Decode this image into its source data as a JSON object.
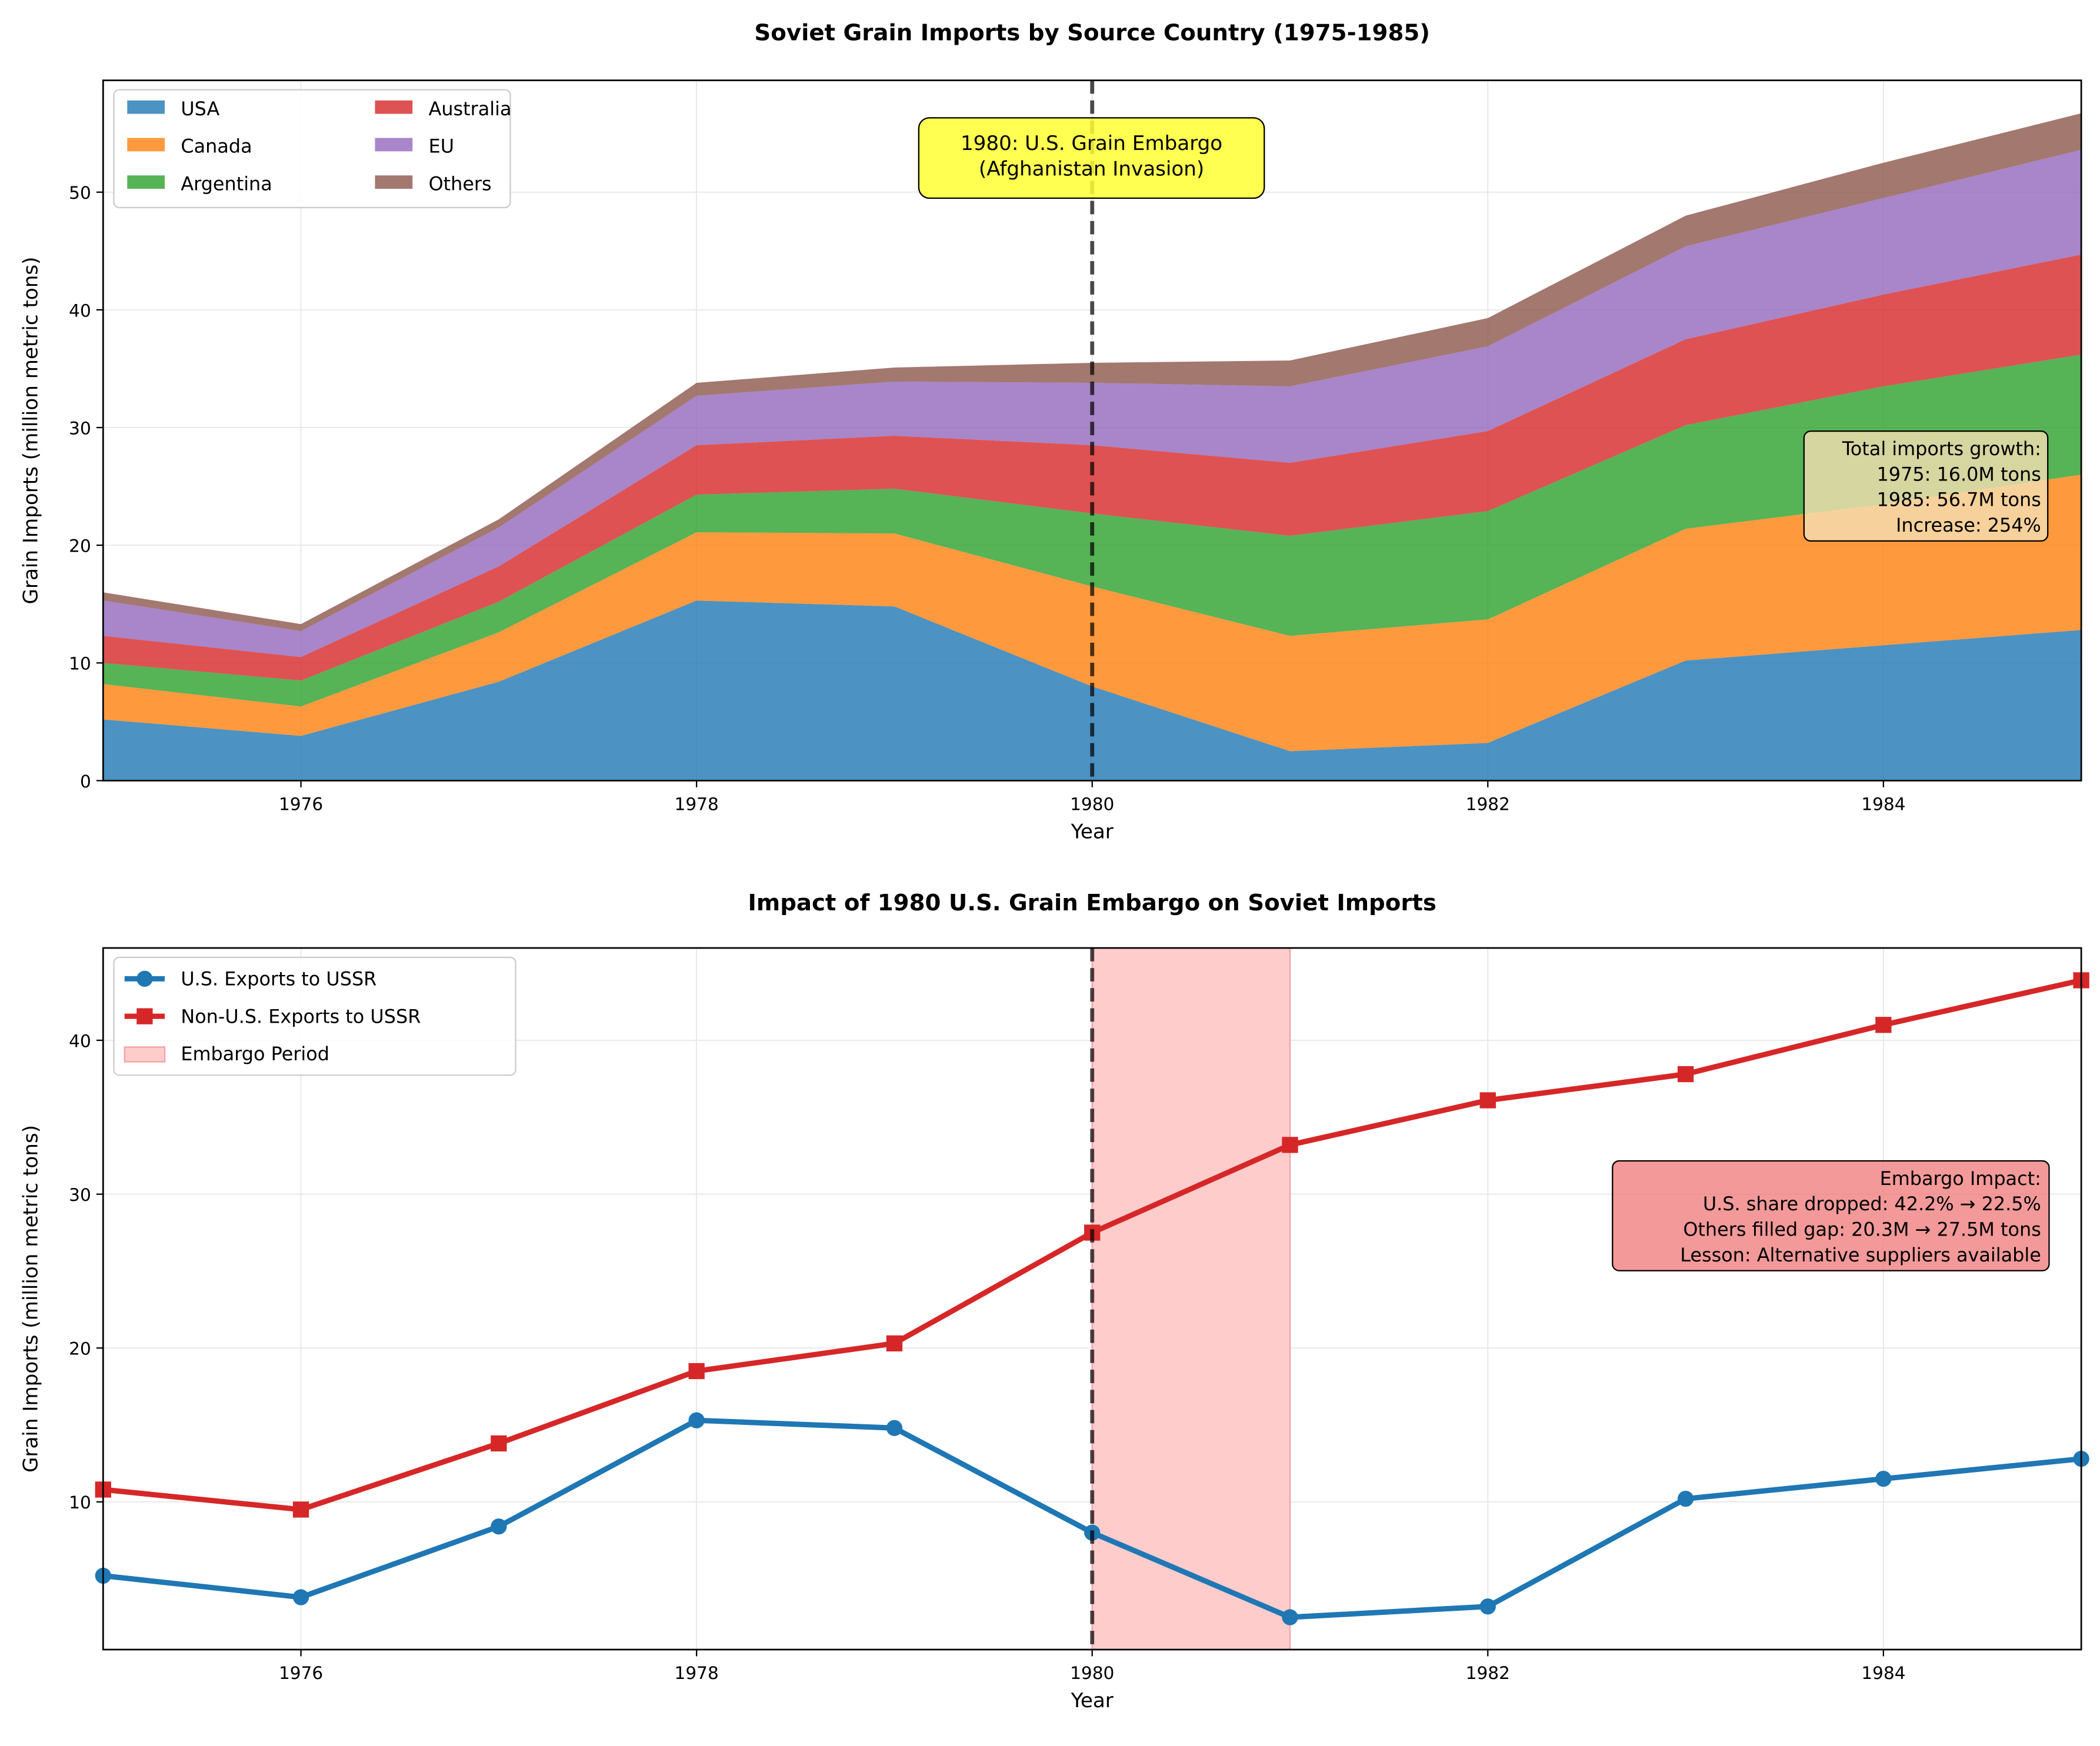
{
  "chart_data": [
    {
      "type": "area",
      "stacked": true,
      "title": "Soviet Grain Imports by Source Country (1975-1985)",
      "xlabel": "Year",
      "ylabel": "Grain Imports (million metric tons)",
      "x": [
        1975,
        1976,
        1977,
        1978,
        1979,
        1980,
        1981,
        1982,
        1983,
        1984,
        1985
      ],
      "xlim": [
        1975,
        1985
      ],
      "ylim": [
        0,
        59.5
      ],
      "xticks": [
        1976,
        1978,
        1980,
        1982,
        1984
      ],
      "yticks": [
        0,
        10,
        20,
        30,
        40,
        50
      ],
      "grid": true,
      "legend": "top-left",
      "series": [
        {
          "name": "USA",
          "color": "#1f77b4",
          "values": [
            5.2,
            3.8,
            8.4,
            15.3,
            14.8,
            8.0,
            2.5,
            3.2,
            10.2,
            11.5,
            12.8
          ]
        },
        {
          "name": "Canada",
          "color": "#ff7f0e",
          "values": [
            3.0,
            2.5,
            4.2,
            5.8,
            6.2,
            8.5,
            9.8,
            10.5,
            11.2,
            12.0,
            13.2
          ]
        },
        {
          "name": "Argentina",
          "color": "#2ca02c",
          "values": [
            1.8,
            2.2,
            2.6,
            3.2,
            3.8,
            6.2,
            8.5,
            9.2,
            8.8,
            10.0,
            10.2
          ]
        },
        {
          "name": "Australia",
          "color": "#d62728",
          "values": [
            2.3,
            2.0,
            3.0,
            4.2,
            4.5,
            5.8,
            6.2,
            6.8,
            7.3,
            7.8,
            8.5
          ]
        },
        {
          "name": "EU",
          "color": "#9467bd",
          "values": [
            3.0,
            2.2,
            3.3,
            4.2,
            4.6,
            5.3,
            6.5,
            7.2,
            7.9,
            8.2,
            8.9
          ]
        },
        {
          "name": "Others",
          "color": "#8c564b",
          "values": [
            0.7,
            0.6,
            0.7,
            1.1,
            1.2,
            1.7,
            2.2,
            2.4,
            2.6,
            3.0,
            3.1
          ]
        }
      ],
      "vline": 1980,
      "annotations": {
        "embargo": [
          "1980: U.S. Grain Embargo",
          "(Afghanistan Invasion)"
        ],
        "growth": [
          "Total imports growth:",
          "1975: 16.0M tons",
          "1985: 56.7M tons",
          "Increase: 254%"
        ]
      }
    },
    {
      "type": "line",
      "title": "Impact of 1980 U.S. Grain Embargo on Soviet Imports",
      "xlabel": "Year",
      "ylabel": "Grain Imports (million metric tons)",
      "x": [
        1975,
        1976,
        1977,
        1978,
        1979,
        1980,
        1981,
        1982,
        1983,
        1984,
        1985
      ],
      "xlim": [
        1975,
        1985
      ],
      "ylim": [
        0.4,
        46
      ],
      "xticks": [
        1976,
        1978,
        1980,
        1982,
        1984
      ],
      "yticks": [
        10,
        20,
        30,
        40
      ],
      "grid": true,
      "legend": "top-left",
      "series": [
        {
          "name": "U.S. Exports to USSR",
          "color": "#1f77b4",
          "marker": "circle",
          "values": [
            5.2,
            3.8,
            8.4,
            15.3,
            14.8,
            8.0,
            2.5,
            3.2,
            10.2,
            11.5,
            12.8
          ]
        },
        {
          "name": "Non-U.S. Exports to USSR",
          "color": "#d62728",
          "marker": "square",
          "values": [
            10.8,
            9.5,
            13.8,
            18.5,
            20.3,
            27.5,
            33.2,
            36.1,
            37.8,
            41.0,
            43.9
          ]
        }
      ],
      "span": {
        "name": "Embargo Period",
        "from": 1980,
        "to": 1981,
        "color": "#ffcccc"
      },
      "vline": 1980,
      "annotations": {
        "impact": [
          "Embargo Impact:",
          "U.S. share dropped: 42.2% → 22.5%",
          "Others filled gap: 20.3M → 27.5M tons",
          "Lesson: Alternative suppliers available"
        ]
      }
    }
  ]
}
